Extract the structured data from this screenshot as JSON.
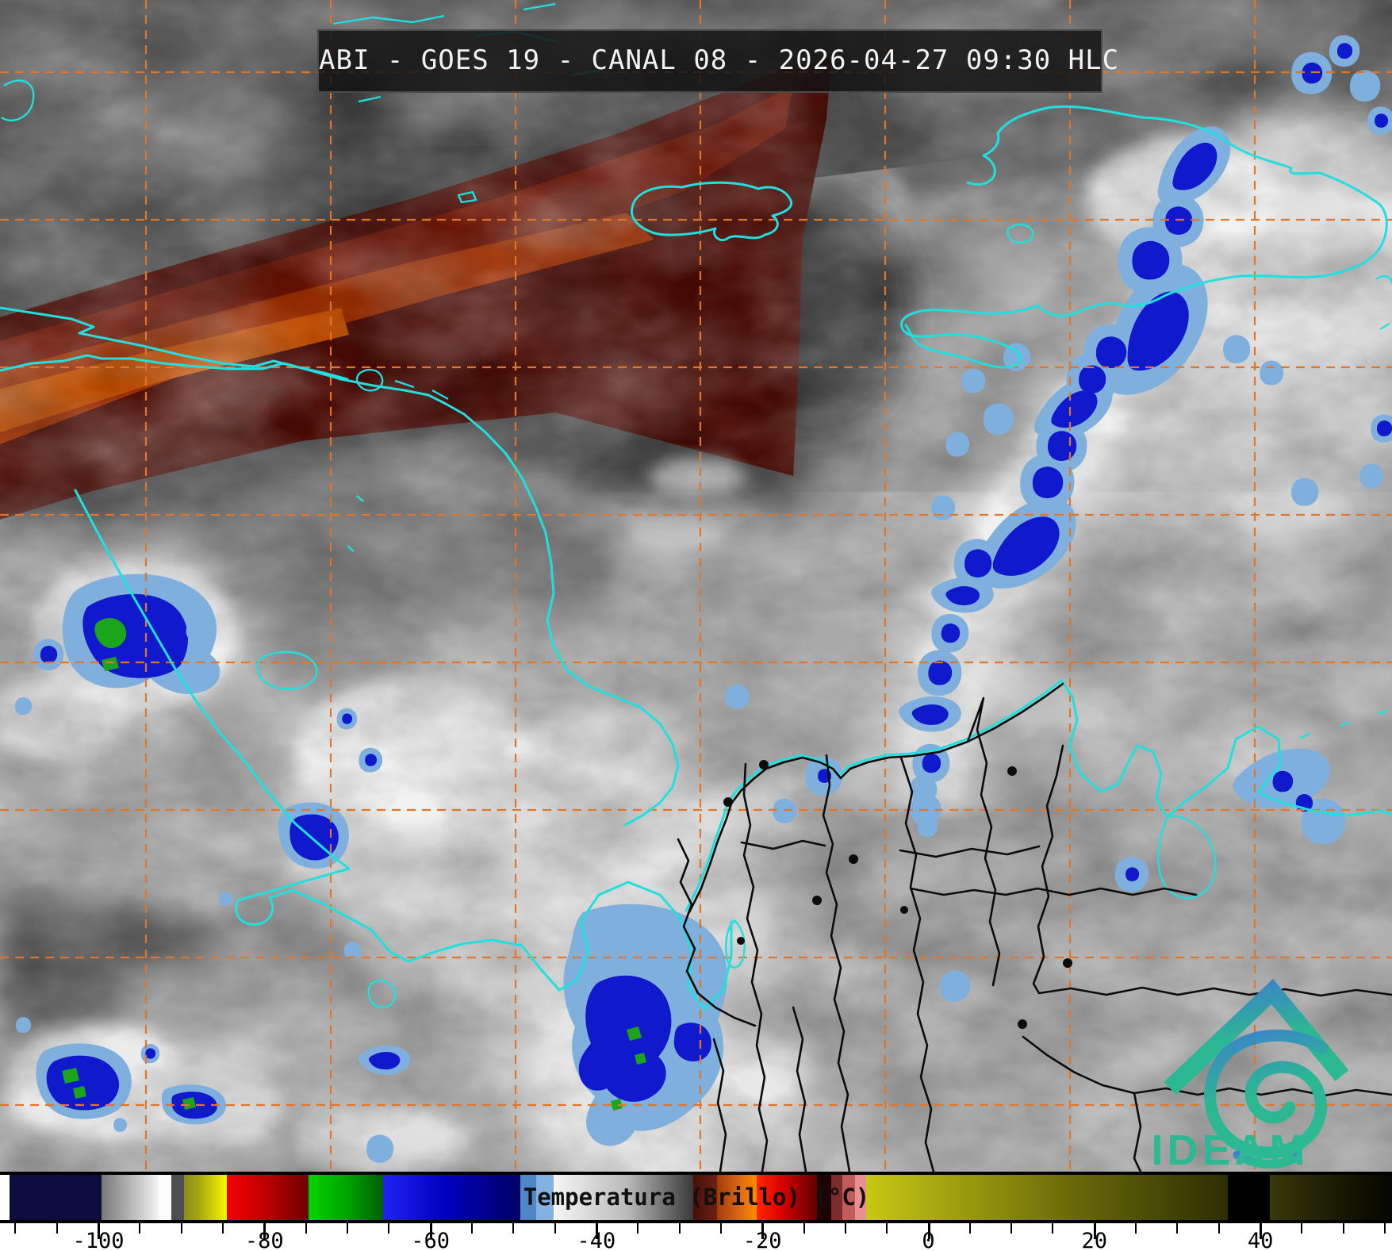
{
  "title": {
    "text": "ABI - GOES 19 - CANAL 08 - 2026-04-27 09:30 HLC"
  },
  "colorbar": {
    "label": "Temperatura (Brillo) (°C)",
    "major_ticks": [
      {
        "value": -100,
        "label": "-100"
      },
      {
        "value": -80,
        "label": "-80"
      },
      {
        "value": -60,
        "label": "-60"
      },
      {
        "value": -40,
        "label": "-40"
      },
      {
        "value": -20,
        "label": "-20"
      },
      {
        "value": 0,
        "label": "0"
      },
      {
        "value": 20,
        "label": "20"
      },
      {
        "value": 40,
        "label": "40"
      }
    ],
    "minor_tick_step": 5,
    "range_c": [
      -110,
      55
    ],
    "palette": [
      [
        0,
        "#ffffff"
      ],
      [
        12,
        "#ffffff"
      ],
      [
        12,
        "#0c0c3e"
      ],
      [
        128,
        "#0c0c3e"
      ],
      [
        128,
        "#787878"
      ],
      [
        200,
        "#f2f2f2"
      ],
      [
        200,
        "#fbfbfb"
      ],
      [
        216,
        "#fbfbfb"
      ],
      [
        216,
        "#4e4e4e"
      ],
      [
        232,
        "#4e4e4e"
      ],
      [
        232,
        "#8c8c1c"
      ],
      [
        252,
        "#a8a810"
      ],
      [
        286,
        "#f8f800"
      ],
      [
        286,
        "#f20000"
      ],
      [
        330,
        "#c40000"
      ],
      [
        388,
        "#6e0000"
      ],
      [
        390,
        "#00d400"
      ],
      [
        440,
        "#00a000"
      ],
      [
        482,
        "#006000"
      ],
      [
        484,
        "#2222f2"
      ],
      [
        560,
        "#0000c0"
      ],
      [
        656,
        "#000064"
      ],
      [
        656,
        "#4e86c6"
      ],
      [
        676,
        "#4e86c6"
      ],
      [
        676,
        "#84b2e0"
      ],
      [
        698,
        "#84b2e0"
      ],
      [
        698,
        "#f6f6f6"
      ],
      [
        790,
        "#bababa"
      ],
      [
        874,
        "#3a3a3a"
      ],
      [
        874,
        "#46100a"
      ],
      [
        904,
        "#6e2010"
      ],
      [
        904,
        "#a03c08"
      ],
      [
        930,
        "#d86414"
      ],
      [
        954,
        "#ff8c00"
      ],
      [
        954,
        "#ff2800"
      ],
      [
        986,
        "#d80000"
      ],
      [
        1000,
        "#b00000"
      ],
      [
        1030,
        "#600000"
      ],
      [
        1030,
        "#1c0404"
      ],
      [
        1048,
        "#1c0404"
      ],
      [
        1048,
        "#7c2c2c"
      ],
      [
        1062,
        "#7c2c2c"
      ],
      [
        1062,
        "#c05c5c"
      ],
      [
        1078,
        "#c05c5c"
      ],
      [
        1078,
        "#e89090"
      ],
      [
        1092,
        "#e89090"
      ],
      [
        1092,
        "#c8c814"
      ],
      [
        1200,
        "#a0a010"
      ],
      [
        1350,
        "#6a6a0a"
      ],
      [
        1548,
        "#2e2e04"
      ],
      [
        1548,
        "#000000"
      ],
      [
        1601,
        "#000000"
      ],
      [
        1601,
        "#38380a"
      ],
      [
        1680,
        "#1c1c04"
      ],
      [
        1755,
        "#050502"
      ]
    ]
  },
  "logo": {
    "text": "IDEAM"
  },
  "theme": {
    "title-bg": "rgba(17,17,17,0.84)",
    "title-fg": "#f2f2f2",
    "coast": "#22dfdf",
    "grid": "#e0762a",
    "border": "#0c0c0c",
    "deep-blue": "#1119cc",
    "light-blue": "#7fb0dd",
    "green-core": "#1ba51b",
    "maroon-outer": "#4a0b04",
    "maroon-mid": "#6e1403",
    "maroon-bright": "#9c2d00",
    "maroon-core": "#c44e00",
    "logo-blue": "#3b82c9",
    "logo-teal": "#2db694",
    "logo-text": "#2cb893"
  }
}
